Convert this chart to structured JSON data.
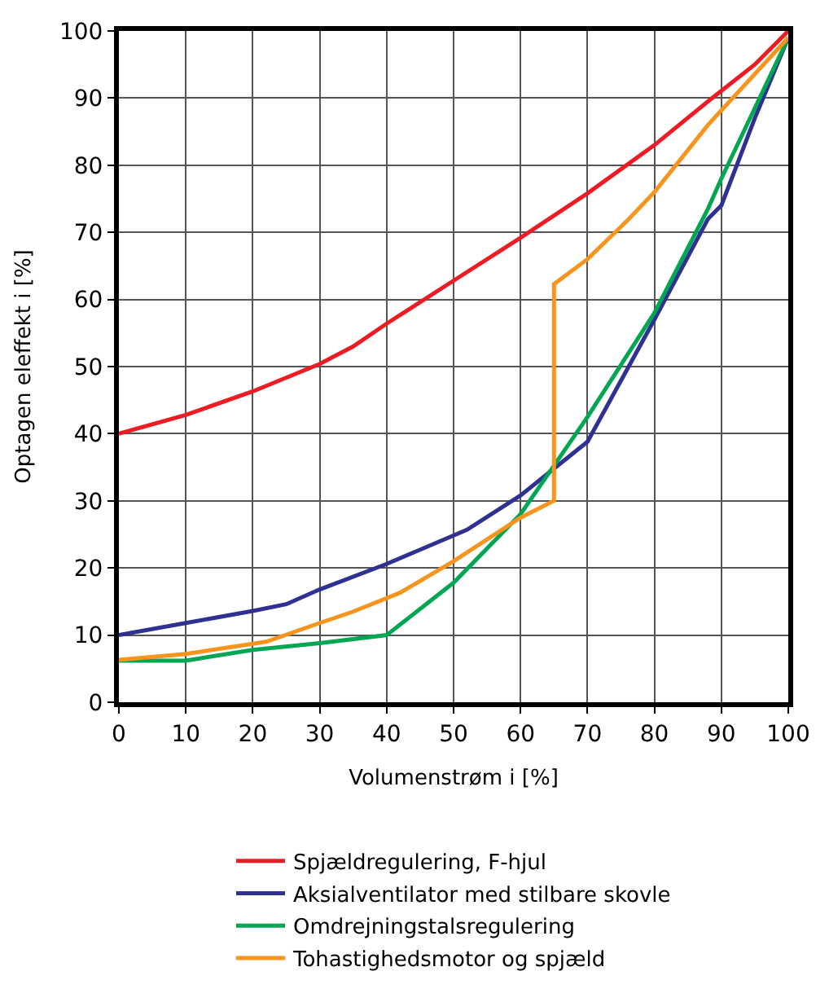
{
  "chart_data": {
    "type": "line",
    "xlabel": "Volumenstrøm i [%]",
    "ylabel": "Optagen eleffekt i [%]",
    "xlim": [
      0,
      100
    ],
    "xticks": [
      0,
      10,
      20,
      30,
      40,
      50,
      60,
      70,
      80,
      90,
      100
    ],
    "ylim": [
      0,
      100
    ],
    "yticks": [
      0,
      10,
      20,
      30,
      40,
      50,
      60,
      70,
      80,
      90,
      100
    ],
    "grid": true,
    "legend": "bottom",
    "marker": "none",
    "line_style": "solid",
    "series": [
      {
        "name": "Spjældregulering, F-hjul",
        "color": "#ed1c24",
        "x": [
          0,
          10,
          20,
          30,
          35,
          40,
          50,
          60,
          70,
          80,
          88,
          95,
          100
        ],
        "values": [
          40,
          42.8,
          46.3,
          50.4,
          53,
          56.4,
          62.8,
          69.2,
          75.8,
          83,
          89.5,
          95,
          100
        ]
      },
      {
        "name": "Aksialventilator med stilbare skovle",
        "color": "#2e3192",
        "x": [
          0,
          10,
          20,
          25,
          30,
          40,
          52,
          60,
          70,
          80,
          88,
          90,
          95,
          100
        ],
        "values": [
          10,
          11.8,
          13.6,
          14.6,
          16.8,
          20.6,
          25.7,
          30.8,
          38.8,
          57,
          72,
          74,
          87,
          99
        ]
      },
      {
        "name": "Omdrejningstalsregulering",
        "color": "#00a651",
        "x": [
          0,
          10,
          20,
          30,
          40,
          50,
          60,
          70,
          80,
          88,
          90,
          100
        ],
        "values": [
          6.2,
          6.2,
          7.8,
          8.8,
          10,
          17.8,
          28,
          42.5,
          58,
          73.5,
          78,
          99
        ]
      },
      {
        "name": "Tohastighedsmotor og spjæld",
        "color": "#f7941d",
        "x": [
          0,
          10,
          22,
          30,
          35,
          42,
          50,
          60,
          65,
          65,
          70,
          76,
          80,
          88,
          100
        ],
        "values": [
          6.3,
          7.2,
          9,
          11.8,
          13.5,
          16.3,
          21,
          27.5,
          30,
          62.3,
          66,
          71.8,
          76,
          86,
          99
        ]
      }
    ]
  }
}
